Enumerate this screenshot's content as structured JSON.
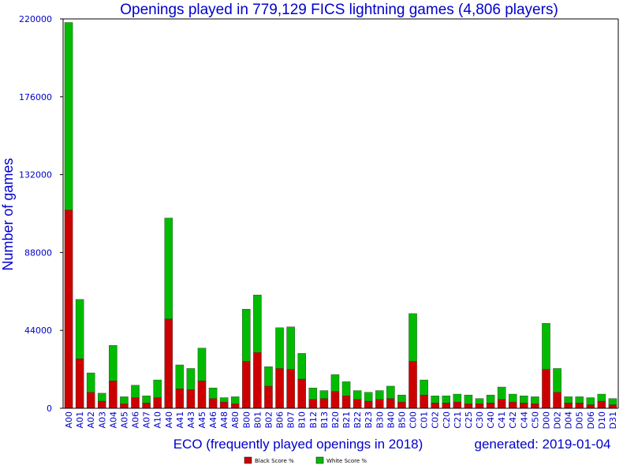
{
  "chart_data": {
    "type": "bar",
    "stacked": true,
    "title": "Openings played in 779,129 FICS lightning games (4,806 players)",
    "xlabel": "ECO (frequently played openings in 2018)",
    "ylabel": "Number of games",
    "generated": "generated: 2019-01-04",
    "ylim": [
      0,
      220000
    ],
    "yticks": [
      0,
      44000,
      88000,
      132000,
      176000,
      220000
    ],
    "grid": false,
    "legend_position": "bottom-center",
    "categories": [
      "A00",
      "A01",
      "A02",
      "A03",
      "A04",
      "A05",
      "A06",
      "A07",
      "A10",
      "A40",
      "A41",
      "A43",
      "A45",
      "A46",
      "A48",
      "A80",
      "B00",
      "B01",
      "B02",
      "B06",
      "B07",
      "B10",
      "B12",
      "B13",
      "B20",
      "B21",
      "B22",
      "B23",
      "B30",
      "B40",
      "B50",
      "C00",
      "C01",
      "C02",
      "C20",
      "C21",
      "C25",
      "C30",
      "C40",
      "C41",
      "C42",
      "C44",
      "C50",
      "D00",
      "D02",
      "D04",
      "D05",
      "D06",
      "D10",
      "D31"
    ],
    "series": [
      {
        "name": "Black Score %",
        "color": "#cc0000",
        "values": [
          112000,
          28000,
          9000,
          4000,
          15500,
          2500,
          6000,
          3000,
          6000,
          50500,
          11000,
          10500,
          15500,
          5500,
          3500,
          2500,
          26500,
          31500,
          12500,
          22500,
          22000,
          16500,
          5000,
          5500,
          9500,
          7000,
          5000,
          4000,
          5000,
          5500,
          3500,
          26500,
          7500,
          3000,
          3000,
          3500,
          2500,
          2500,
          3000,
          5000,
          3500,
          3000,
          2500,
          22000,
          9000,
          3000,
          3000,
          2000,
          4000,
          2000
        ]
      },
      {
        "name": "White Score %",
        "color": "#00bb00",
        "values": [
          106000,
          33500,
          11000,
          4500,
          20000,
          4000,
          7000,
          4000,
          10000,
          57000,
          13500,
          12000,
          18500,
          6000,
          2500,
          4000,
          29500,
          32500,
          11000,
          23000,
          24000,
          14500,
          6500,
          4500,
          9500,
          8000,
          5000,
          5000,
          5000,
          7000,
          4000,
          27000,
          8500,
          4000,
          4000,
          4500,
          5000,
          3000,
          4500,
          7000,
          4500,
          4000,
          4000,
          26000,
          13500,
          3500,
          3500,
          4000,
          4000,
          3500
        ]
      }
    ]
  }
}
